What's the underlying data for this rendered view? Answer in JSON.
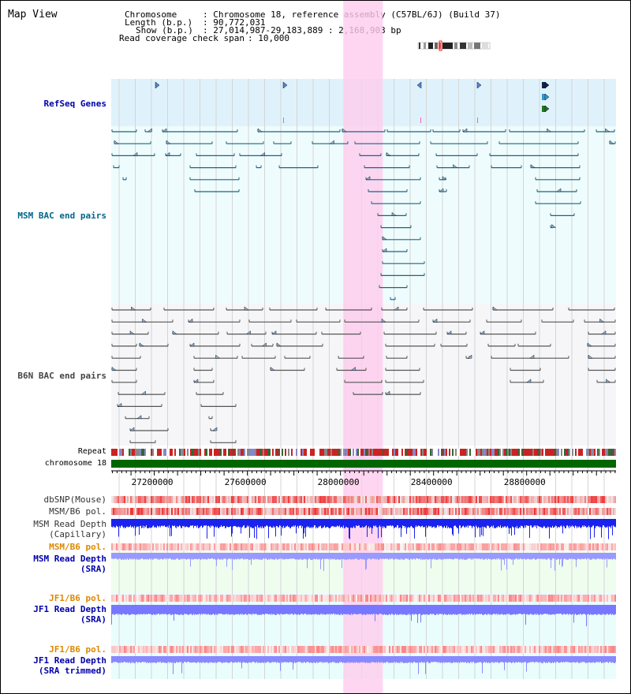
{
  "view_title": "Map View",
  "info": {
    "chromosome_label": "Chromosome",
    "chromosome_value": ": Chromosome 18, reference assembly (C57BL/6J) (Build 37)",
    "length_label": "Length (b.p.)",
    "length_value": ": 90,772,031",
    "show_label": "Show (b.p.)",
    "show_value": ": 27,014,987-29,183,889 : 2,168,903 bp",
    "coverage_label": "Read coverage check span",
    "coverage_value": ": 10,000"
  },
  "tracks": {
    "refseq": {
      "label": "RefSeq Genes",
      "color": "#0000aa"
    },
    "msm_bac": {
      "label": "MSM BAC end pairs",
      "color": "#006688"
    },
    "b6n_bac": {
      "label": "B6N BAC end pairs",
      "color": "#444444"
    },
    "repeat": {
      "label": "Repeat"
    },
    "chromosome": {
      "label": "chromosome 18"
    },
    "dbsnp": {
      "label": "dbSNP(Mouse)"
    },
    "msm_b6_pol": {
      "label": "MSM/B6 pol."
    },
    "msm_read_depth_cap": {
      "label": "MSM Read Depth\n(Capillary)"
    },
    "msm_b6_pol_sra": {
      "label": "MSM/B6 pol.",
      "color": "#dd8800"
    },
    "msm_read_depth_sra": {
      "label": "MSM Read Depth\n(SRA)",
      "color": "#0000aa"
    },
    "jf1_b6_pol": {
      "label": "JF1/B6 pol.",
      "color": "#dd8800"
    },
    "jf1_read_depth_sra": {
      "label": "JF1 Read Depth\n(SRA)",
      "color": "#0000aa"
    },
    "jf1_b6_pol_trim": {
      "label": "JF1/B6 pol.",
      "color": "#dd8800"
    },
    "jf1_read_depth_trim": {
      "label": "JF1 Read Depth\n(SRA trimmed)",
      "color": "#0000aa"
    }
  },
  "axis": {
    "ticks": [
      "27200000",
      "27600000",
      "28000000",
      "28400000",
      "28800000"
    ],
    "tick_values": [
      27200000,
      27600000,
      28000000,
      28400000,
      28800000
    ],
    "start": 27014987,
    "end": 29183889
  },
  "highlight": {
    "start": 28012000,
    "end": 28182000,
    "color": "#ffccee"
  },
  "colors": {
    "refseq_bg": "#dff2fb",
    "msm_bg": "#effcfd",
    "b6n_bg": "#f6f6f8",
    "chromosome_bar": "#006600",
    "depth_blue": "#2233ee",
    "depth_light": "#8888ff",
    "pol_red": "#ee4444"
  }
}
